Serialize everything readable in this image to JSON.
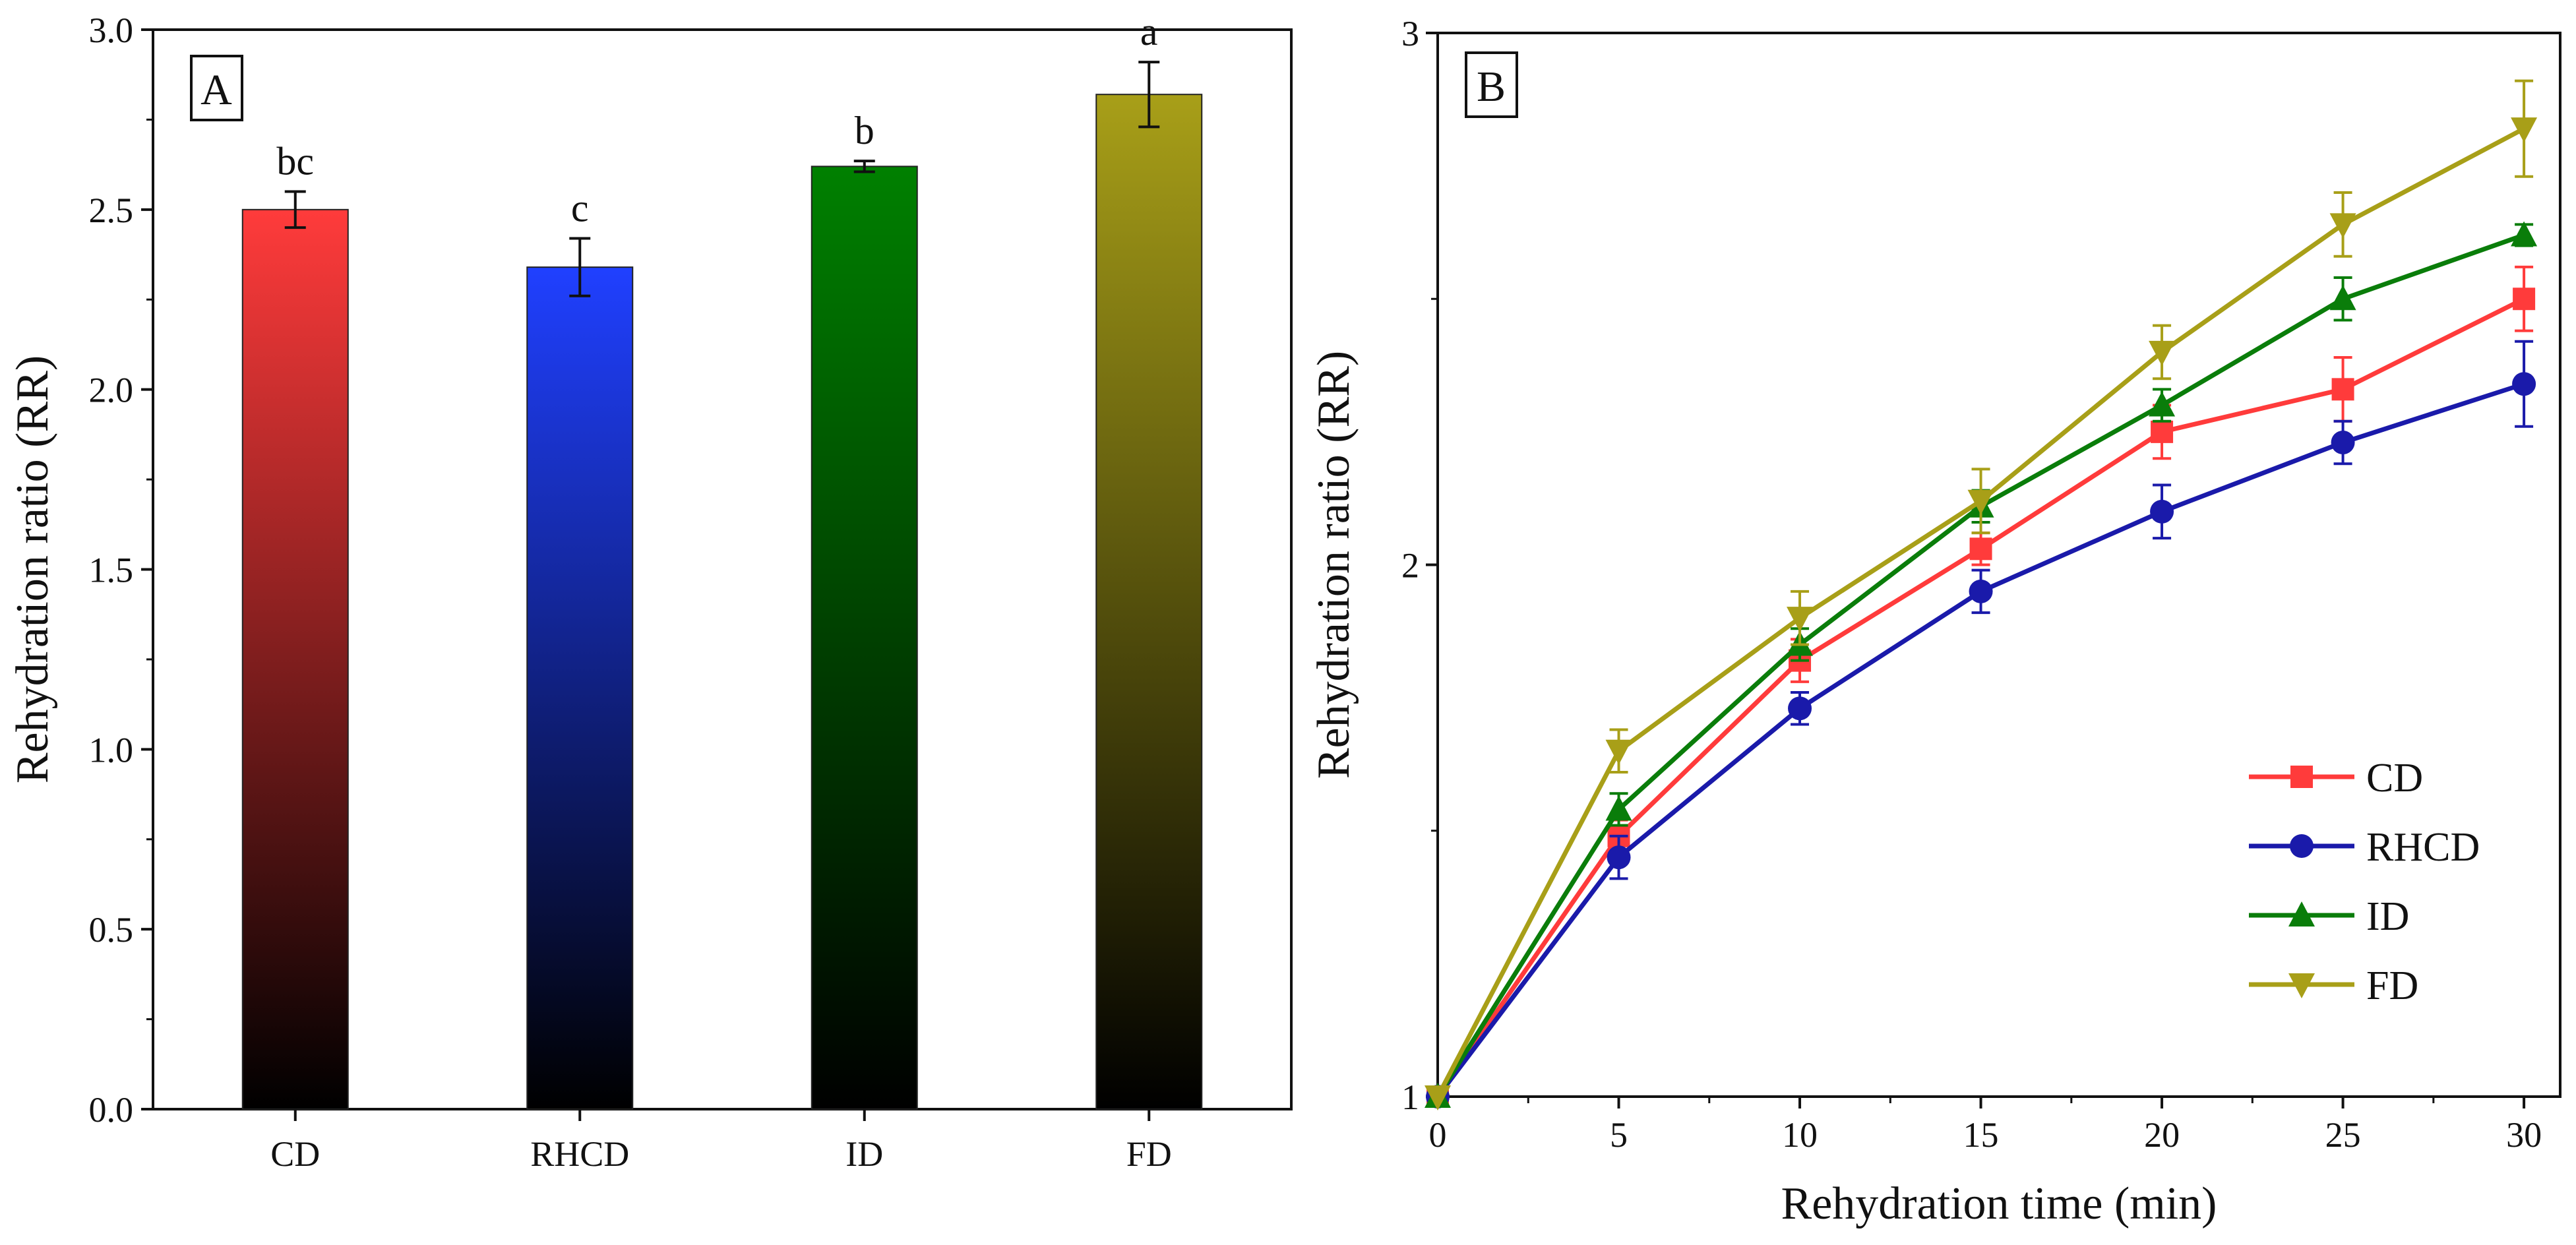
{
  "chart_data": [
    {
      "type": "bar",
      "panel_label": "A",
      "title": "",
      "xlabel": "",
      "ylabel": "Rehydration ratio (RR)",
      "ylim": [
        0,
        3.0
      ],
      "yticks": [
        "0.0",
        "0.5",
        "1.0",
        "1.5",
        "2.0",
        "2.5",
        "3.0"
      ],
      "categories": [
        "CD",
        "RHCD",
        "ID",
        "FD"
      ],
      "values": [
        2.5,
        2.34,
        2.62,
        2.82
      ],
      "errors": [
        0.05,
        0.08,
        0.015,
        0.09
      ],
      "significance_letters": [
        "bc",
        "c",
        "b",
        "a"
      ],
      "colors": [
        "#ff3b3b",
        "#2040ff",
        "#008000",
        "#a89f18"
      ],
      "legend_position": "none"
    },
    {
      "type": "line",
      "panel_label": "B",
      "title": "",
      "xlabel": "Rehydration time (min)",
      "ylabel": "Rehydration ratio (RR)",
      "xlim": [
        0,
        31
      ],
      "ylim": [
        1,
        3
      ],
      "xticks": [
        "0",
        "5",
        "10",
        "15",
        "20",
        "25",
        "30"
      ],
      "yticks": [
        "1",
        "2",
        "3"
      ],
      "x": [
        0,
        5,
        10,
        15,
        20,
        25,
        30
      ],
      "series": [
        {
          "name": "CD",
          "marker": "square",
          "color": "#ff3b3b",
          "values": [
            1.0,
            1.49,
            1.82,
            2.03,
            2.25,
            2.33,
            2.5
          ],
          "errors": [
            0,
            0.03,
            0.04,
            0.03,
            0.05,
            0.06,
            0.06
          ]
        },
        {
          "name": "RHCD",
          "marker": "circle",
          "color": "#1a1aaa",
          "values": [
            1.0,
            1.45,
            1.73,
            1.95,
            2.1,
            2.23,
            2.34
          ],
          "errors": [
            0,
            0.04,
            0.03,
            0.04,
            0.05,
            0.04,
            0.08
          ]
        },
        {
          "name": "ID",
          "marker": "triangle-up",
          "color": "#0a7d0a",
          "values": [
            1.0,
            1.54,
            1.85,
            2.11,
            2.3,
            2.5,
            2.62
          ],
          "errors": [
            0,
            0.03,
            0.03,
            0.03,
            0.03,
            0.04,
            0.02
          ]
        },
        {
          "name": "FD",
          "marker": "triangle-down",
          "color": "#a89f18",
          "values": [
            1.0,
            1.65,
            1.9,
            2.12,
            2.4,
            2.64,
            2.82
          ],
          "errors": [
            0,
            0.04,
            0.05,
            0.06,
            0.05,
            0.06,
            0.09
          ]
        }
      ],
      "legend_position": "bottom-right"
    }
  ]
}
